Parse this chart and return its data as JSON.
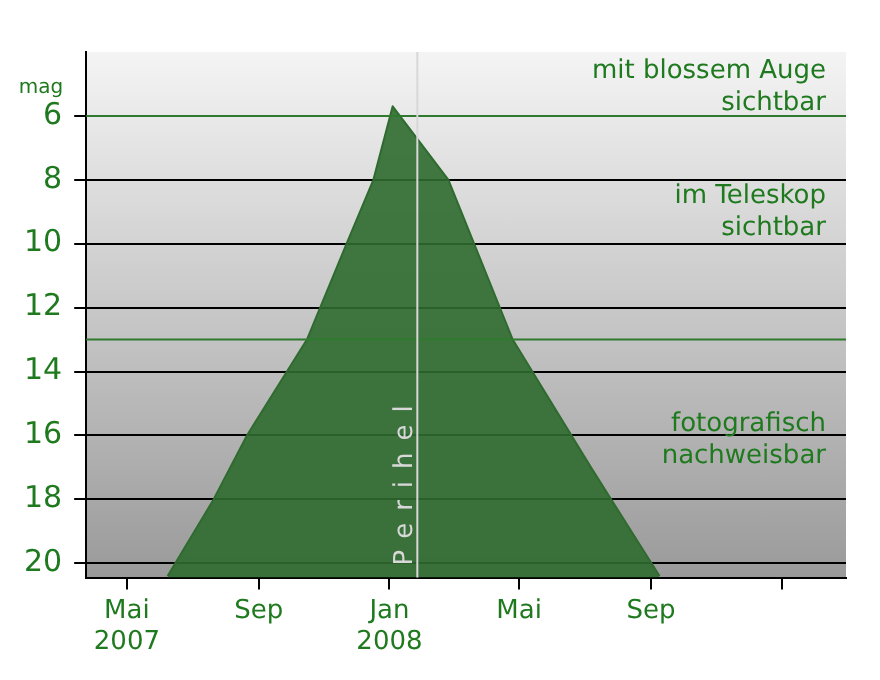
{
  "chart_data": {
    "type": "area",
    "ylabel": "mag",
    "x": [
      "2007-06-08",
      "2007-07-21",
      "2007-08-21",
      "2007-10-16",
      "2007-11-22",
      "2007-12-17",
      "2008-01-04",
      "2008-02-25",
      "2008-04-25",
      "2008-07-07",
      "2008-09-09"
    ],
    "series": [
      {
        "color": "#2f6b2f",
        "values": [
          20.4,
          18,
          16,
          13,
          10,
          8,
          5.7,
          8,
          13,
          17,
          20.4
        ]
      }
    ],
    "xlim": [
      "2007-03-24",
      "2009-03-02"
    ],
    "xticks": [
      {
        "value": "2007-05",
        "label": "Mai\n2007"
      },
      {
        "value": "2007-09",
        "label": "Sep"
      },
      {
        "value": "2008-01",
        "label": "Jan\n2008"
      },
      {
        "value": "2008-05",
        "label": "Mai"
      },
      {
        "value": "2008-09",
        "label": "Sep"
      },
      {
        "value": "2009-01",
        "label": null
      }
    ],
    "ylim": [
      20.45,
      4
    ],
    "yticks": [
      6,
      8,
      10,
      12,
      14,
      16,
      18,
      20
    ],
    "grid": "y",
    "legend": false,
    "ref_lines": [
      {
        "axis": "y",
        "value": 6,
        "color": "#2f7a2f"
      },
      {
        "axis": "y",
        "value": 13,
        "color": "#2f7a2f"
      },
      {
        "axis": "x",
        "value": "2008-01-27",
        "label": "Perihel",
        "color": "#d8d8d8"
      }
    ],
    "annotations": [
      "mit blossem Auge\nsichtbar",
      "im Teleskop\nsichtbar",
      "fotografisch\nnachweisbar"
    ]
  }
}
